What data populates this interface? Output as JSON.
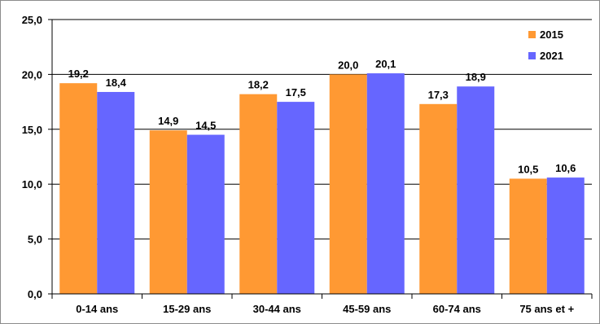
{
  "chart_data": {
    "type": "bar",
    "title": "",
    "xlabel": "",
    "ylabel": "",
    "categories": [
      "0-14 ans",
      "15-29 ans",
      "30-44 ans",
      "45-59 ans",
      "60-74 ans",
      "75 ans et +"
    ],
    "series": [
      {
        "name": "2015",
        "color": "#FF9933",
        "values": [
          19.2,
          14.9,
          18.2,
          20.0,
          17.3,
          10.5
        ]
      },
      {
        "name": "2021",
        "color": "#6666FF",
        "values": [
          18.4,
          14.5,
          17.5,
          20.1,
          18.9,
          10.6
        ]
      }
    ],
    "ylim": [
      0,
      25
    ],
    "yticks": [
      0,
      5,
      10,
      15,
      20,
      25
    ],
    "ytick_labels": [
      "0,0",
      "5,0",
      "10,0",
      "15,0",
      "20,0",
      "25,0"
    ],
    "data_labels": [
      [
        "19,2",
        "14,9",
        "18,2",
        "20,0",
        "17,3",
        "10,5"
      ],
      [
        "18,4",
        "14,5",
        "17,5",
        "20,1",
        "18,9",
        "10,6"
      ]
    ],
    "grid": true,
    "legend_position": "top-right"
  }
}
